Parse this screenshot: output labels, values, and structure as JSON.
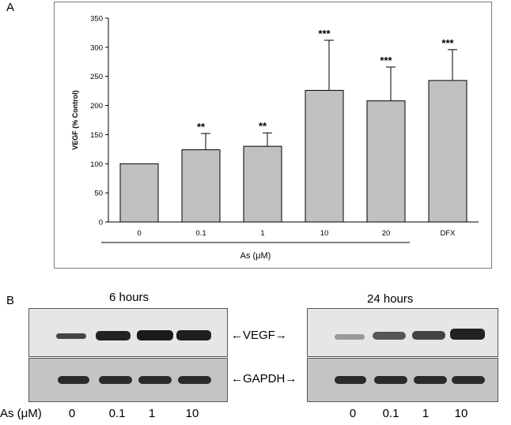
{
  "panel_a": {
    "letter": "A",
    "chart_data": {
      "type": "bar",
      "categories": [
        "0",
        "0.1",
        "1",
        "10",
        "20",
        "DFX"
      ],
      "values": [
        100,
        124,
        130,
        226,
        208,
        243
      ],
      "errors": [
        0,
        28,
        23,
        86,
        58,
        53
      ],
      "significance": [
        "",
        "**",
        "**",
        "***",
        "***",
        "***"
      ],
      "ylabel": "VEGF (% Control)",
      "xlabel": "As (μM)",
      "yticks": [
        0,
        50,
        100,
        150,
        200,
        250,
        300,
        350
      ],
      "ylim": [
        0,
        350
      ],
      "bar_color": "#c0c0c0",
      "grid": false
    }
  },
  "panel_b": {
    "letter": "B",
    "gel_6h": {
      "title": "6 hours",
      "lanes": [
        "0",
        "0.1",
        "1",
        "10"
      ]
    },
    "gel_24h": {
      "title": "24 hours",
      "lanes": [
        "0",
        "0.1",
        "1",
        "10"
      ]
    },
    "vegf_label": "VEGF",
    "gapdh_label": "GAPDH",
    "row_label": "As (μM)"
  }
}
